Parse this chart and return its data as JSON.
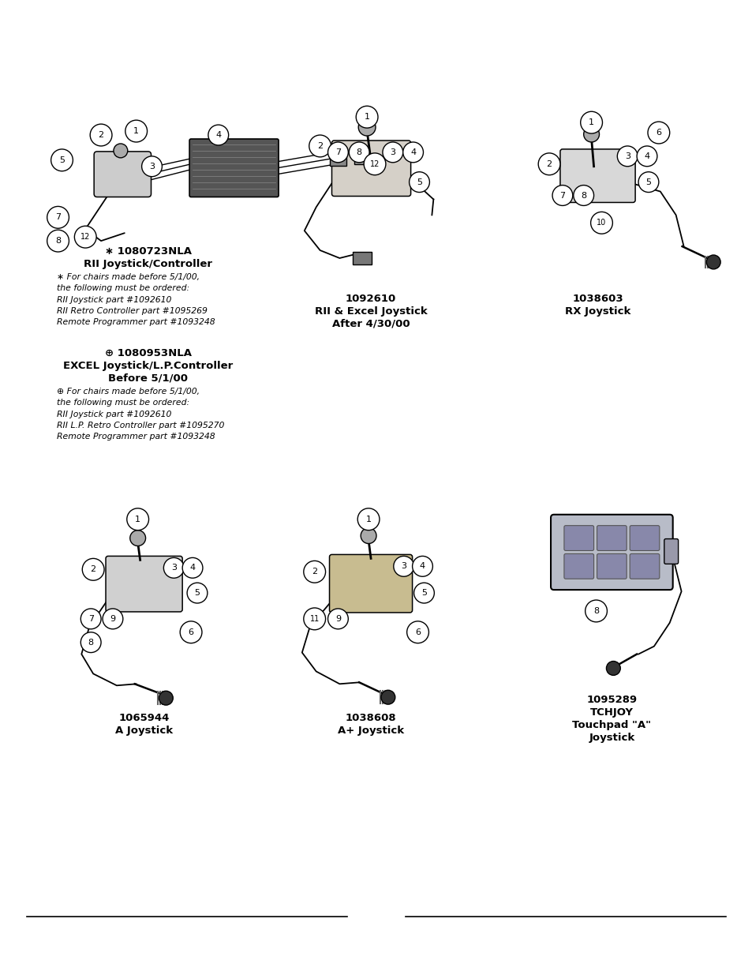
{
  "background_color": "#ffffff",
  "fig_width": 9.54,
  "fig_height": 12.35,
  "s1_title1": "∗ 1080723NLA",
  "s1_title2": "RII Joystick/Controller",
  "s1_note1": "∗ For chairs made before 5/1/00,\nthe following must be ordered:\nRII Joystick part #1092610\nRII Retro Controller part #1095269\nRemote Programmer part #1093248",
  "s1_title3": "⊕ 1080953NLA",
  "s1_title4a": "EXCEL Joystick/L.P.Controller",
  "s1_title4b": "Before 5/1/00",
  "s1_note2": "⊕ For chairs made before 5/1/00,\nthe following must be ordered:\nRII Joystick part #1092610\nRII L.P. Retro Controller part #1095270\nRemote Programmer part #1093248",
  "d2_part": "1092610",
  "d2_name1": "RII & Excel Joystick",
  "d2_name2": "After 4/30/00",
  "d3_part": "1038603",
  "d3_name": "RX Joystick",
  "d4_part": "1065944",
  "d4_name": "A Joystick",
  "d5_part": "1038608",
  "d5_name": "A+ Joystick",
  "d6_part": "1095289",
  "d6_name1": "TCHJOY",
  "d6_name2": "Touchpad \"A\"",
  "d6_name3": "Joystick"
}
